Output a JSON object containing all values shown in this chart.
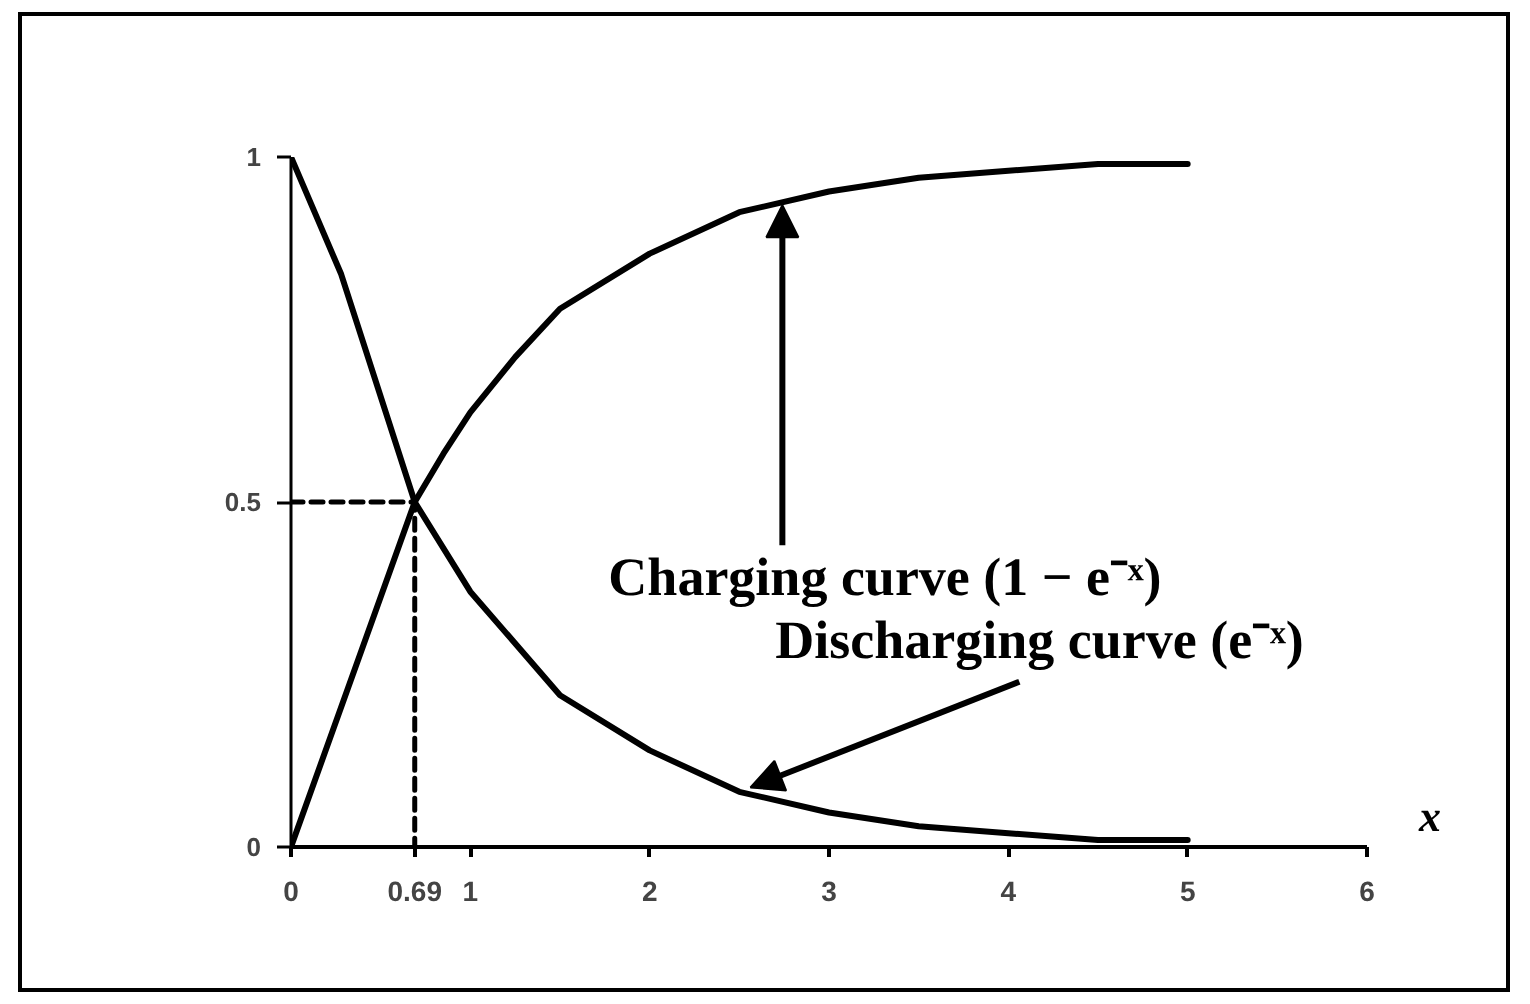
{
  "chart_data": {
    "type": "line",
    "xlabel": "x",
    "xlim": [
      0,
      6
    ],
    "ylim": [
      0,
      1
    ],
    "xticks": [
      0,
      0.69,
      1,
      2,
      3,
      4,
      5,
      6
    ],
    "yticks": [
      0,
      0.5,
      1
    ],
    "line_style": "solid",
    "series": [
      {
        "color": "#000000",
        "x": [
          0,
          0.69,
          0.85,
          1,
          1.25,
          1.5,
          2,
          2.5,
          3,
          3.5,
          4,
          4.5,
          5
        ],
        "values": [
          0,
          0.5,
          0.57,
          0.63,
          0.71,
          0.78,
          0.86,
          0.92,
          0.95,
          0.97,
          0.98,
          0.99,
          0.99
        ]
      },
      {
        "color": "#000000",
        "x": [
          0,
          0.28,
          0.69,
          1,
          1.5,
          2,
          2.5,
          3,
          3.5,
          4,
          4.5,
          5
        ],
        "values": [
          1,
          0.83,
          0.5,
          0.37,
          0.22,
          0.14,
          0.08,
          0.05,
          0.03,
          0.02,
          0.01,
          0.01
        ]
      },
      {
        "color": "#000000",
        "line_style": "dashed",
        "x": [
          0,
          0.69,
          0.69
        ],
        "values": [
          0.5,
          0.5,
          0
        ]
      }
    ],
    "annotations": [
      {
        "text": "Charging curve (1 − e⁻ˣ)",
        "x": 2.74,
        "y": 0.93
      },
      {
        "text": "Discharging curve (e⁻ˣ)",
        "x": 2.5,
        "y": 0.08
      }
    ]
  }
}
